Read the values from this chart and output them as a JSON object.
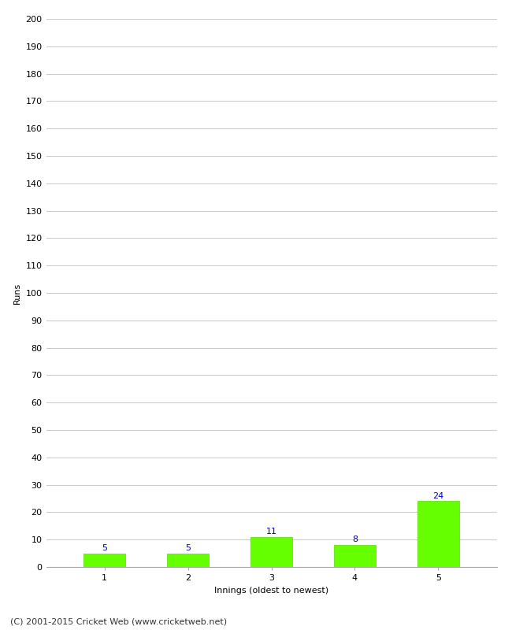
{
  "categories": [
    "1",
    "2",
    "3",
    "4",
    "5"
  ],
  "values": [
    5,
    5,
    11,
    8,
    24
  ],
  "bar_color": "#66ff00",
  "bar_edge_color": "#55dd00",
  "xlabel": "Innings (oldest to newest)",
  "ylabel": "Runs",
  "ylim": [
    0,
    200
  ],
  "yticks": [
    0,
    10,
    20,
    30,
    40,
    50,
    60,
    70,
    80,
    90,
    100,
    110,
    120,
    130,
    140,
    150,
    160,
    170,
    180,
    190,
    200
  ],
  "label_color": "#0000cc",
  "label_fontsize": 8,
  "axis_label_fontsize": 8,
  "tick_fontsize": 8,
  "footer": "(C) 2001-2015 Cricket Web (www.cricketweb.net)",
  "footer_fontsize": 8,
  "background_color": "#ffffff",
  "grid_color": "#cccccc"
}
